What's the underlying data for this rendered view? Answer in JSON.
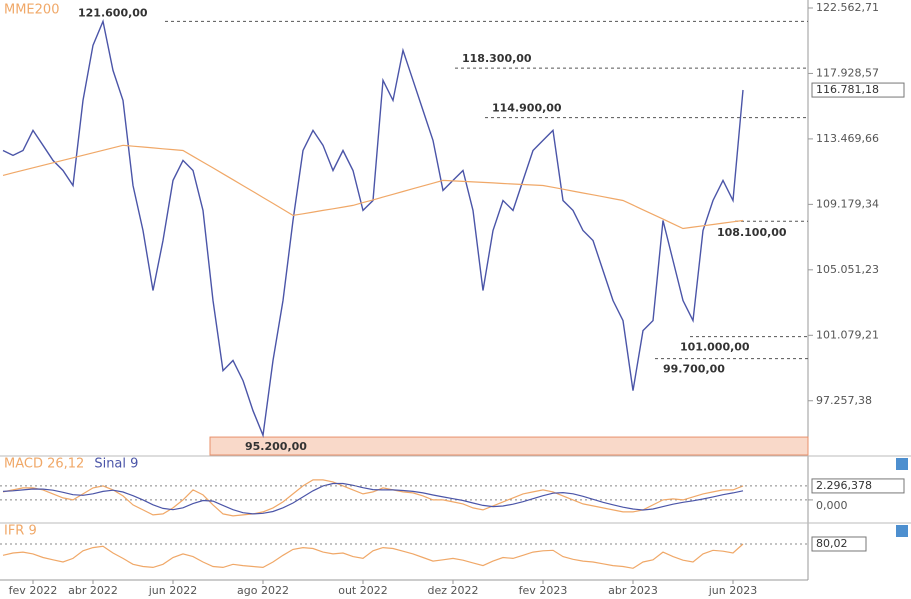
{
  "chart_data": [
    {
      "type": "line",
      "log_scale": true,
      "categories": [
        null,
        null,
        null,
        "fev 2022",
        null,
        null,
        null,
        null,
        null,
        "abr 2022",
        null,
        null,
        null,
        null,
        null,
        null,
        null,
        "jun 2022",
        null,
        null,
        null,
        null,
        null,
        null,
        null,
        null,
        "ago 2022",
        null,
        null,
        null,
        null,
        null,
        null,
        null,
        null,
        null,
        "out 2022",
        null,
        null,
        null,
        null,
        null,
        null,
        null,
        null,
        "dez 2022",
        null,
        null,
        null,
        null,
        null,
        null,
        null,
        null,
        "fev 2023",
        null,
        null,
        null,
        null,
        null,
        null,
        null,
        null,
        "abr 2023",
        null,
        null,
        null,
        null,
        null,
        null,
        null,
        null,
        null,
        "jun 2023",
        null
      ],
      "series": [
        {
          "color": "#4b55a8",
          "values": [
            112700,
            112370,
            112700,
            114040,
            113040,
            112040,
            111380,
            110400,
            116070,
            119900,
            121600,
            118140,
            116070,
            110400,
            107510,
            103780,
            106880,
            110730,
            112040,
            111380,
            108790,
            103170,
            99000,
            99590,
            98420,
            96690,
            95300,
            99590,
            103170,
            108150,
            112700,
            114040,
            113040,
            111380,
            112700,
            111380,
            108790,
            109430,
            117450,
            116070,
            119540,
            117450,
            115390,
            113370,
            110080,
            110730,
            111380,
            108790,
            103780,
            107510,
            109430,
            108790,
            110730,
            112700,
            113370,
            114040,
            109430,
            108790,
            107510,
            106880,
            105010,
            103170,
            101960,
            97840,
            101360,
            101960,
            108150,
            105630,
            103170,
            101960,
            107510,
            109430,
            110730,
            109430,
            116781.18
          ]
        },
        {
          "name": "MME200",
          "color": "#f0a868",
          "values": [
            111060,
            111225,
            111390,
            111555,
            111720,
            111885,
            112050,
            112215,
            112380,
            112545,
            112710,
            112875,
            113040,
            112983,
            112927,
            112870,
            112813,
            112757,
            112700,
            112316,
            111931,
            111547,
            111162,
            110778,
            110393,
            110009,
            109624,
            109240,
            108855,
            108470,
            108577,
            108683,
            108790,
            108897,
            109003,
            109110,
            109290,
            109470,
            109650,
            109830,
            110010,
            110190,
            110370,
            110550,
            110730,
            110697,
            110664,
            110631,
            110598,
            110565,
            110532,
            110499,
            110466,
            110433,
            110400,
            110279,
            110158,
            110036,
            109915,
            109794,
            109673,
            109551,
            109430,
            109132,
            108833,
            108535,
            108237,
            107938,
            107640,
            107725,
            107810,
            107895,
            107980,
            108065,
            108150
          ]
        }
      ],
      "ylim": [
        94200,
        123140
      ],
      "yticks": [
        {
          "value": 122562.71,
          "label": "122.562,71"
        },
        {
          "value": 117928.57,
          "label": "117.928,57"
        },
        {
          "value": 113469.66,
          "label": "113.469,66"
        },
        {
          "value": 109179.34,
          "label": "109.179,34"
        },
        {
          "value": 105051.23,
          "label": "105.051,23"
        },
        {
          "value": 101079.21,
          "label": "101.079,21"
        },
        {
          "value": 97257.38,
          "label": "97.257,38"
        }
      ],
      "last_label": {
        "value": 116781.18,
        "label": "116.781,18"
      },
      "annotations": [
        {
          "value": 121600,
          "label": "121.600,00"
        },
        {
          "value": 118300,
          "label": "118.300,00"
        },
        {
          "value": 114900,
          "label": "114.900,00"
        },
        {
          "value": 108100,
          "label": "108.100,00"
        },
        {
          "value": 101000,
          "label": "101.000,00"
        },
        {
          "value": 99700,
          "label": "99.700,00"
        },
        {
          "value": 95200,
          "label": "95.200,00"
        }
      ]
    },
    {
      "type": "line",
      "series": [
        {
          "name": "MACD 26,12",
          "color": "#f0a868",
          "values": [
            1312,
            1640,
            1968,
            1968,
            1640,
            984,
            328,
            0,
            984,
            1968,
            2296,
            1640,
            656,
            -820,
            -1640,
            -2460,
            -2296,
            -1312,
            0,
            1640,
            820,
            -820,
            -2296,
            -2624,
            -2460,
            -2296,
            -1968,
            -1312,
            -328,
            984,
            2296,
            3280,
            3280,
            2952,
            2296,
            1640,
            984,
            1312,
            1968,
            1640,
            1312,
            1148,
            656,
            0,
            0,
            -328,
            -656,
            -1312,
            -1640,
            -984,
            -328,
            328,
            984,
            1312,
            1640,
            1312,
            656,
            0,
            -656,
            -984,
            -1312,
            -1640,
            -1968,
            -1968,
            -1640,
            -820,
            0,
            164,
            0,
            492,
            984,
            1312,
            1640,
            1640,
            2296.378
          ]
        },
        {
          "name": "Sinal 9",
          "color": "#4b55a8",
          "values": [
            1400,
            1500,
            1650,
            1800,
            1780,
            1600,
            1250,
            850,
            750,
            1000,
            1400,
            1600,
            1300,
            700,
            0,
            -800,
            -1400,
            -1600,
            -1300,
            -600,
            -100,
            -200,
            -900,
            -1600,
            -2100,
            -2300,
            -2200,
            -1900,
            -1300,
            -500,
            500,
            1500,
            2300,
            2700,
            2700,
            2400,
            2000,
            1700,
            1650,
            1650,
            1550,
            1400,
            1150,
            800,
            500,
            200,
            -100,
            -500,
            -900,
            -1100,
            -1000,
            -700,
            -300,
            200,
            700,
            1100,
            1200,
            1000,
            600,
            100,
            -400,
            -800,
            -1200,
            -1500,
            -1650,
            -1500,
            -1100,
            -700,
            -400,
            -150,
            150,
            500,
            850,
            1150,
            1500
          ]
        }
      ],
      "ylim": [
        -3300,
        3600
      ],
      "yticks": [
        {
          "value": 0,
          "label": "0,000"
        }
      ],
      "last_label": {
        "value": 2296.378,
        "label": "2.296,378"
      }
    },
    {
      "type": "line",
      "series": [
        {
          "name": "IFR 9",
          "color": "#f0a868",
          "values": [
            55,
            60,
            62,
            58,
            50,
            45,
            40,
            48,
            65,
            72,
            75,
            60,
            48,
            35,
            30,
            28,
            35,
            50,
            58,
            52,
            40,
            30,
            28,
            35,
            32,
            30,
            28,
            40,
            55,
            68,
            72,
            70,
            62,
            58,
            60,
            52,
            48,
            65,
            72,
            70,
            64,
            58,
            50,
            42,
            45,
            48,
            44,
            38,
            32,
            42,
            50,
            48,
            55,
            62,
            65,
            66,
            52,
            46,
            42,
            40,
            36,
            32,
            30,
            26,
            40,
            45,
            62,
            52,
            44,
            40,
            58,
            66,
            64,
            60,
            80.02
          ]
        }
      ],
      "ylim": [
        0,
        100
      ],
      "last_label": {
        "value": 80.02,
        "label": "80,02"
      }
    }
  ]
}
